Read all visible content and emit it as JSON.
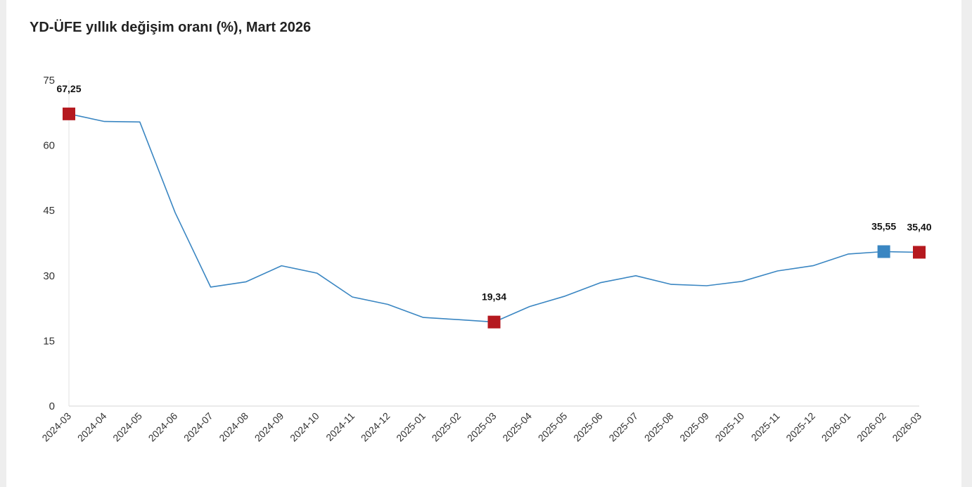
{
  "title": "YD-ÜFE yıllık değişim oranı (%), Mart 2026",
  "chart_data": {
    "type": "line",
    "title": "YD-ÜFE yıllık değişim oranı (%), Mart 2026",
    "xlabel": "",
    "ylabel": "",
    "ylim": [
      0,
      75
    ],
    "yticks": [
      0,
      15,
      30,
      45,
      60,
      75
    ],
    "grid": false,
    "legend": "none",
    "x": [
      "2024-03",
      "2024-04",
      "2024-05",
      "2024-06",
      "2024-07",
      "2024-08",
      "2024-09",
      "2024-10",
      "2024-11",
      "2024-12",
      "2025-01",
      "2025-02",
      "2025-03",
      "2025-04",
      "2025-05",
      "2025-06",
      "2025-07",
      "2025-08",
      "2025-09",
      "2025-10",
      "2025-11",
      "2025-12",
      "2026-01",
      "2026-02",
      "2026-03"
    ],
    "series": [
      {
        "values": [
          67.25,
          65.5,
          65.4,
          44.5,
          27.4,
          28.6,
          32.3,
          30.6,
          25.1,
          23.4,
          20.4,
          19.9,
          19.34,
          22.9,
          25.3,
          28.4,
          30.0,
          28.0,
          27.7,
          28.7,
          31.1,
          32.3,
          35.0,
          35.55,
          35.4
        ],
        "color": "#3a86c2"
      }
    ],
    "highlights": [
      {
        "x": "2024-03",
        "value": 67.25,
        "label": "67,25",
        "color": "#b5191f"
      },
      {
        "x": "2025-03",
        "value": 19.34,
        "label": "19,34",
        "color": "#b5191f"
      },
      {
        "x": "2026-02",
        "value": 35.55,
        "label": "35,55",
        "color": "#3a86c2"
      },
      {
        "x": "2026-03",
        "value": 35.4,
        "label": "35,40",
        "color": "#b5191f"
      }
    ]
  }
}
